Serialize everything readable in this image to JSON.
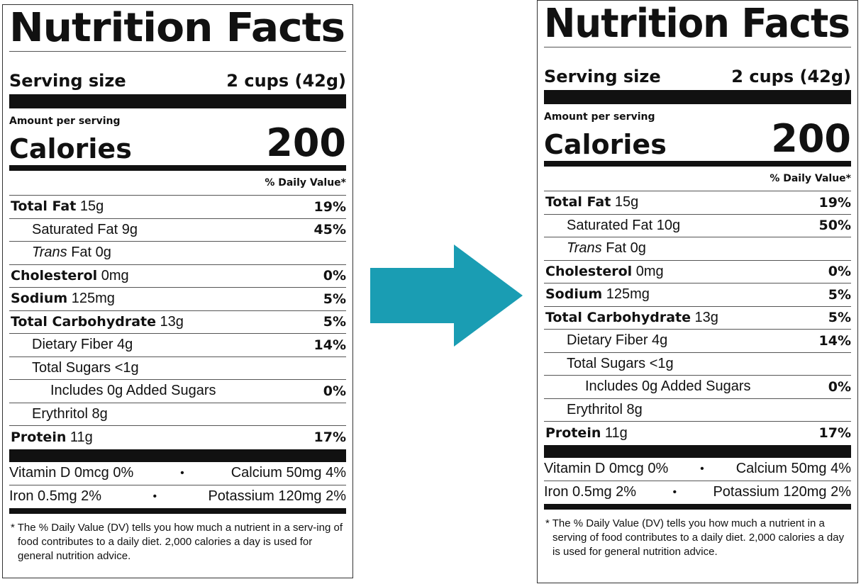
{
  "colors": {
    "arrow": "#1a9db3",
    "text": "#111111"
  },
  "arrow_icon": "right-arrow",
  "labels": [
    {
      "id": "left",
      "title": "Nutrition Facts",
      "serving_label": "Serving size",
      "serving_value": "2 cups (42g)",
      "amount_label": "Amount per serving",
      "calories_label": "Calories",
      "calories_value": "200",
      "dv_header": "% Daily Value*",
      "rows": [
        {
          "bold": "Total Fat",
          "text": " 15g",
          "dv": "19%",
          "indent": 0
        },
        {
          "text": "Saturated Fat 9g",
          "dv": "45%",
          "indent": 1
        },
        {
          "italic": "Trans",
          "text": " Fat 0g",
          "dv": "",
          "indent": 1
        },
        {
          "bold": "Cholesterol",
          "text": " 0mg",
          "dv": "0%",
          "indent": 0
        },
        {
          "bold": "Sodium",
          "text": " 125mg",
          "dv": "5%",
          "indent": 0
        },
        {
          "bold": "Total Carbohydrate",
          "text": " 13g",
          "dv": "5%",
          "indent": 0
        },
        {
          "text": "Dietary Fiber 4g",
          "dv": "14%",
          "indent": 1
        },
        {
          "text": "Total Sugars <1g",
          "dv": "",
          "indent": 1
        },
        {
          "text": "Includes 0g Added Sugars",
          "dv": "0%",
          "indent": 2
        },
        {
          "text": "Erythritol 8g",
          "dv": "",
          "indent": 1
        },
        {
          "bold": "Protein",
          "text": " 11g",
          "dv": "17%",
          "indent": 0
        }
      ],
      "vitamins": [
        {
          "left": "Vitamin D 0mcg 0%",
          "sep": "•",
          "right": "Calcium 50mg 4%"
        },
        {
          "left": "Iron 0.5mg 2%",
          "sep": "•",
          "right": "Potassium 120mg 2%"
        }
      ],
      "footnote": "* The % Daily Value (DV) tells you how much a nutrient in a serv-ing of food contributes to a daily diet. 2,000 calories a day is used for general nutrition advice."
    },
    {
      "id": "right",
      "title": "Nutrition Facts",
      "serving_label": "Serving size",
      "serving_value": "2 cups (42g)",
      "amount_label": "Amount per serving",
      "calories_label": "Calories",
      "calories_value": "200",
      "dv_header": "% Daily Value*",
      "rows": [
        {
          "bold": "Total Fat",
          "text": " 15g",
          "dv": "19%",
          "indent": 0
        },
        {
          "text": "Saturated Fat 10g",
          "dv": "50%",
          "indent": 1
        },
        {
          "italic": "Trans",
          "text": " Fat 0g",
          "dv": "",
          "indent": 1
        },
        {
          "bold": "Cholesterol",
          "text": " 0mg",
          "dv": "0%",
          "indent": 0
        },
        {
          "bold": "Sodium",
          "text": " 125mg",
          "dv": "5%",
          "indent": 0
        },
        {
          "bold": "Total Carbohydrate",
          "text": " 13g",
          "dv": "5%",
          "indent": 0
        },
        {
          "text": "Dietary Fiber 4g",
          "dv": "14%",
          "indent": 1
        },
        {
          "text": "Total Sugars <1g",
          "dv": "",
          "indent": 1
        },
        {
          "text": "Includes 0g Added Sugars",
          "dv": "0%",
          "indent": 2
        },
        {
          "text": "Erythritol 8g",
          "dv": "",
          "indent": 1
        },
        {
          "bold": "Protein",
          "text": " 11g",
          "dv": "17%",
          "indent": 0
        }
      ],
      "vitamins": [
        {
          "left": "Vitamin D 0mcg 0%",
          "sep": "•",
          "right": "Calcium 50mg 4%"
        },
        {
          "left": "Iron 0.5mg 2%",
          "sep": "•",
          "right": "Potassium 120mg 2%"
        }
      ],
      "footnote": "* The % Daily Value (DV) tells you how much a nutrient in a serving of food contributes to a daily diet. 2,000 calories a day is used for general nutrition advice."
    }
  ]
}
